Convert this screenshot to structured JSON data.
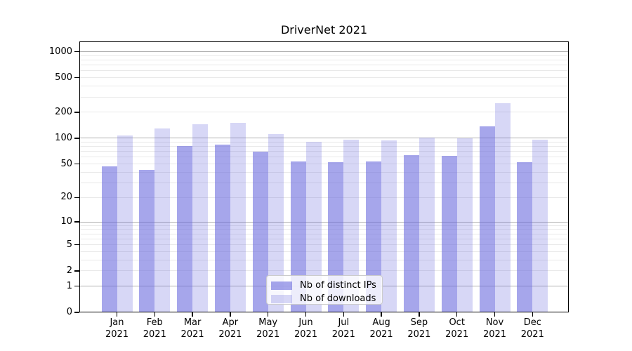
{
  "chart_data": {
    "type": "bar",
    "title": "DriverNet 2021",
    "categories": [
      "Jan 2021",
      "Feb 2021",
      "Mar 2021",
      "Apr 2021",
      "May 2021",
      "Jun 2021",
      "Jul 2021",
      "Aug 2021",
      "Sep 2021",
      "Oct 2021",
      "Nov 2021",
      "Dec 2021"
    ],
    "series": [
      {
        "name": "Nb of distinct IPs",
        "color": "rgba(102,102,221,0.58)",
        "values": [
          47,
          43,
          81,
          84,
          70,
          54,
          53,
          54,
          64,
          62,
          136,
          53
        ]
      },
      {
        "name": "Nb of downloads",
        "color": "rgba(102,102,221,0.26)",
        "values": [
          108,
          129,
          144,
          151,
          111,
          91,
          96,
          94,
          102,
          100,
          252,
          96
        ]
      }
    ],
    "y_axis": {
      "scale": "symlog",
      "ticks": [
        0,
        1,
        2,
        5,
        10,
        20,
        50,
        100,
        200,
        500,
        1000
      ],
      "major_gridlines": [
        1,
        10,
        100,
        1000
      ],
      "minor_gridlines": [
        2,
        3,
        4,
        5,
        6,
        7,
        8,
        9,
        20,
        30,
        40,
        50,
        60,
        70,
        80,
        90,
        200,
        300,
        400,
        500,
        600,
        700,
        800,
        900
      ],
      "range": [
        0,
        1300
      ]
    },
    "x_axis": {
      "label_line2": "2021"
    },
    "legend": {
      "position": "lower center, inside plot"
    },
    "grid": true,
    "background_color": "#ffffff",
    "text_color": "#000000"
  }
}
